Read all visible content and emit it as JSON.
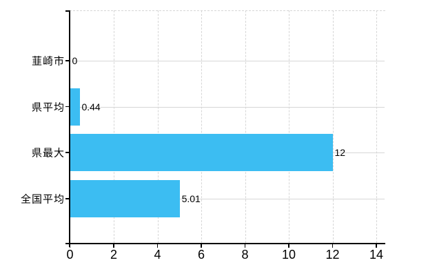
{
  "chart_data": {
    "type": "bar",
    "orientation": "horizontal",
    "categories": [
      "韮崎市",
      "県平均",
      "県最大",
      "全国平均"
    ],
    "values": [
      0,
      0.44,
      12,
      5.01
    ],
    "value_labels": [
      "0",
      "0.44",
      "12",
      "5.01"
    ],
    "x_ticks": [
      "0",
      "2",
      "4",
      "6",
      "8",
      "10",
      "12",
      "14"
    ],
    "x_tick_values": [
      0,
      2,
      4,
      6,
      8,
      10,
      12,
      14
    ],
    "xlim": [
      0,
      14.4
    ],
    "grid": "on",
    "legend": "none",
    "colors": {
      "bar": "#3CBDF2",
      "axis": "#000000",
      "grid": "#D6D6D6",
      "text": "#000000",
      "background": "#FFFFFF"
    }
  }
}
